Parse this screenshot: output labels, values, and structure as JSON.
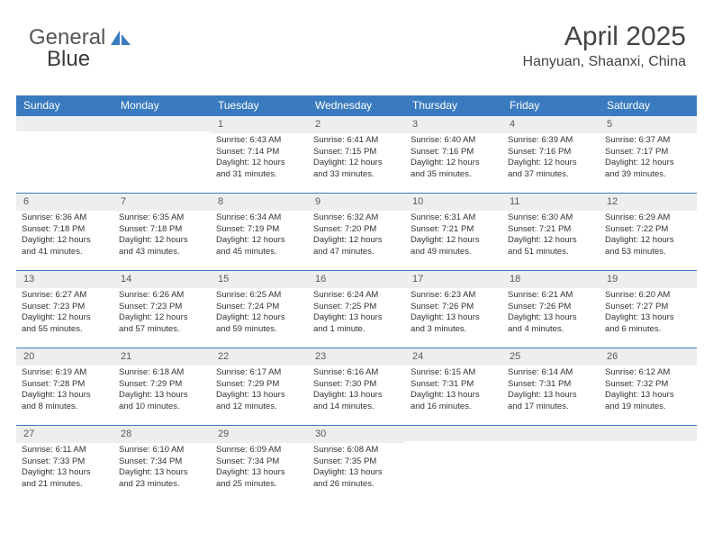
{
  "logo": {
    "text1": "General",
    "text2": "Blue"
  },
  "header": {
    "month": "April 2025",
    "location": "Hanyuan, Shaanxi, China"
  },
  "colors": {
    "accent": "#3a7bbf",
    "header_bg": "#eceef0",
    "text": "#333333",
    "bg": "#ffffff"
  },
  "weekdays": [
    "Sunday",
    "Monday",
    "Tuesday",
    "Wednesday",
    "Thursday",
    "Friday",
    "Saturday"
  ],
  "first_weekday_index": 2,
  "days": [
    {
      "n": 1,
      "sr": "6:43 AM",
      "ss": "7:14 PM",
      "dlh": 12,
      "dlm": 31
    },
    {
      "n": 2,
      "sr": "6:41 AM",
      "ss": "7:15 PM",
      "dlh": 12,
      "dlm": 33
    },
    {
      "n": 3,
      "sr": "6:40 AM",
      "ss": "7:16 PM",
      "dlh": 12,
      "dlm": 35
    },
    {
      "n": 4,
      "sr": "6:39 AM",
      "ss": "7:16 PM",
      "dlh": 12,
      "dlm": 37
    },
    {
      "n": 5,
      "sr": "6:37 AM",
      "ss": "7:17 PM",
      "dlh": 12,
      "dlm": 39
    },
    {
      "n": 6,
      "sr": "6:36 AM",
      "ss": "7:18 PM",
      "dlh": 12,
      "dlm": 41
    },
    {
      "n": 7,
      "sr": "6:35 AM",
      "ss": "7:18 PM",
      "dlh": 12,
      "dlm": 43
    },
    {
      "n": 8,
      "sr": "6:34 AM",
      "ss": "7:19 PM",
      "dlh": 12,
      "dlm": 45
    },
    {
      "n": 9,
      "sr": "6:32 AM",
      "ss": "7:20 PM",
      "dlh": 12,
      "dlm": 47
    },
    {
      "n": 10,
      "sr": "6:31 AM",
      "ss": "7:21 PM",
      "dlh": 12,
      "dlm": 49
    },
    {
      "n": 11,
      "sr": "6:30 AM",
      "ss": "7:21 PM",
      "dlh": 12,
      "dlm": 51
    },
    {
      "n": 12,
      "sr": "6:29 AM",
      "ss": "7:22 PM",
      "dlh": 12,
      "dlm": 53
    },
    {
      "n": 13,
      "sr": "6:27 AM",
      "ss": "7:23 PM",
      "dlh": 12,
      "dlm": 55
    },
    {
      "n": 14,
      "sr": "6:26 AM",
      "ss": "7:23 PM",
      "dlh": 12,
      "dlm": 57
    },
    {
      "n": 15,
      "sr": "6:25 AM",
      "ss": "7:24 PM",
      "dlh": 12,
      "dlm": 59
    },
    {
      "n": 16,
      "sr": "6:24 AM",
      "ss": "7:25 PM",
      "dlh": 13,
      "dlm": 1
    },
    {
      "n": 17,
      "sr": "6:23 AM",
      "ss": "7:26 PM",
      "dlh": 13,
      "dlm": 3
    },
    {
      "n": 18,
      "sr": "6:21 AM",
      "ss": "7:26 PM",
      "dlh": 13,
      "dlm": 4
    },
    {
      "n": 19,
      "sr": "6:20 AM",
      "ss": "7:27 PM",
      "dlh": 13,
      "dlm": 6
    },
    {
      "n": 20,
      "sr": "6:19 AM",
      "ss": "7:28 PM",
      "dlh": 13,
      "dlm": 8
    },
    {
      "n": 21,
      "sr": "6:18 AM",
      "ss": "7:29 PM",
      "dlh": 13,
      "dlm": 10
    },
    {
      "n": 22,
      "sr": "6:17 AM",
      "ss": "7:29 PM",
      "dlh": 13,
      "dlm": 12
    },
    {
      "n": 23,
      "sr": "6:16 AM",
      "ss": "7:30 PM",
      "dlh": 13,
      "dlm": 14
    },
    {
      "n": 24,
      "sr": "6:15 AM",
      "ss": "7:31 PM",
      "dlh": 13,
      "dlm": 16
    },
    {
      "n": 25,
      "sr": "6:14 AM",
      "ss": "7:31 PM",
      "dlh": 13,
      "dlm": 17
    },
    {
      "n": 26,
      "sr": "6:12 AM",
      "ss": "7:32 PM",
      "dlh": 13,
      "dlm": 19
    },
    {
      "n": 27,
      "sr": "6:11 AM",
      "ss": "7:33 PM",
      "dlh": 13,
      "dlm": 21
    },
    {
      "n": 28,
      "sr": "6:10 AM",
      "ss": "7:34 PM",
      "dlh": 13,
      "dlm": 23
    },
    {
      "n": 29,
      "sr": "6:09 AM",
      "ss": "7:34 PM",
      "dlh": 13,
      "dlm": 25
    },
    {
      "n": 30,
      "sr": "6:08 AM",
      "ss": "7:35 PM",
      "dlh": 13,
      "dlm": 26
    }
  ],
  "labels": {
    "sunrise": "Sunrise:",
    "sunset": "Sunset:",
    "daylight": "Daylight:",
    "hours": "hours",
    "and": "and",
    "minutes": "minutes.",
    "minute": "minute."
  }
}
